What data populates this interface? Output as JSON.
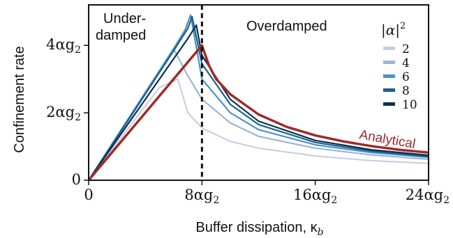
{
  "chart_data": {
    "type": "line",
    "xlabel": "Buffer dissipation, κ",
    "xlabel_sub": "b",
    "ylabel": "Confinement rate",
    "xlim": [
      0,
      24
    ],
    "ylim": [
      0,
      5.2
    ],
    "xticks": [
      {
        "value": 0,
        "label": "0"
      },
      {
        "value": 8,
        "label": "8αg",
        "sub": "2"
      },
      {
        "value": 16,
        "label": "16αg",
        "sub": "2"
      },
      {
        "value": 24,
        "label": "24αg",
        "sub": "2"
      }
    ],
    "yticks": [
      {
        "value": 0,
        "label": "0"
      },
      {
        "value": 2,
        "label": "2αg",
        "sub": "2"
      },
      {
        "value": 4,
        "label": "4αg",
        "sub": "2"
      }
    ],
    "annotations": {
      "underdamped_line1": "Under-",
      "underdamped_line2": "damped",
      "overdamped": "Overdamped",
      "analytical": "Analytical"
    },
    "divider_x": 8,
    "legend": {
      "title": "|α|",
      "title_sup": "2",
      "position": "top-right"
    },
    "series": [
      {
        "name": "2",
        "color": "#c8cbe2",
        "width": 2,
        "x": [
          0,
          1,
          2,
          3,
          4,
          5,
          6.3,
          7,
          8,
          10,
          12,
          16,
          20,
          24
        ],
        "y": [
          0,
          0.55,
          1.1,
          1.65,
          2.2,
          2.75,
          3.0,
          2.0,
          1.55,
          1.15,
          0.95,
          0.72,
          0.58,
          0.5
        ]
      },
      {
        "name": "4",
        "color": "#9bb5d6",
        "width": 2.2,
        "x": [
          0,
          1,
          2,
          3,
          4,
          5,
          6,
          7,
          8,
          10,
          12,
          16,
          20,
          24
        ],
        "y": [
          0,
          0.62,
          1.25,
          1.9,
          2.55,
          3.2,
          3.9,
          3.1,
          2.4,
          1.7,
          1.3,
          0.95,
          0.75,
          0.62
        ]
      },
      {
        "name": "6",
        "color": "#4a93c4",
        "width": 2.2,
        "x": [
          0,
          1,
          2,
          3,
          4,
          5,
          6,
          6.8,
          7.2,
          8,
          10,
          12,
          16,
          20,
          24
        ],
        "y": [
          0,
          0.65,
          1.3,
          1.95,
          2.6,
          3.25,
          3.9,
          4.45,
          4.9,
          3.0,
          2.0,
          1.5,
          1.05,
          0.82,
          0.68
        ]
      },
      {
        "name": "8",
        "color": "#1c5f91",
        "width": 2.2,
        "x": [
          0,
          1,
          2,
          3,
          4,
          5,
          6,
          7,
          7.3,
          8,
          10,
          12,
          16,
          20,
          24
        ],
        "y": [
          0,
          0.64,
          1.28,
          1.92,
          2.56,
          3.2,
          3.84,
          4.5,
          4.85,
          3.45,
          2.25,
          1.65,
          1.12,
          0.86,
          0.7
        ]
      },
      {
        "name": "10",
        "color": "#0c2f4e",
        "width": 2.2,
        "x": [
          0,
          1,
          2,
          3,
          4,
          5,
          6,
          7,
          7.6,
          8,
          10,
          12,
          16,
          20,
          24
        ],
        "y": [
          0,
          0.6,
          1.2,
          1.8,
          2.4,
          3.0,
          3.6,
          4.2,
          4.6,
          3.7,
          2.4,
          1.75,
          1.18,
          0.9,
          0.74
        ]
      },
      {
        "name": "Analytical",
        "color": "#a02a2a",
        "width": 3.5,
        "x": [
          0,
          8,
          8.5,
          9,
          10,
          12,
          14,
          16,
          18,
          20,
          22,
          24
        ],
        "y": [
          0,
          4.0,
          3.4,
          3.0,
          2.55,
          1.95,
          1.58,
          1.33,
          1.15,
          1.01,
          0.9,
          0.82
        ]
      }
    ]
  }
}
